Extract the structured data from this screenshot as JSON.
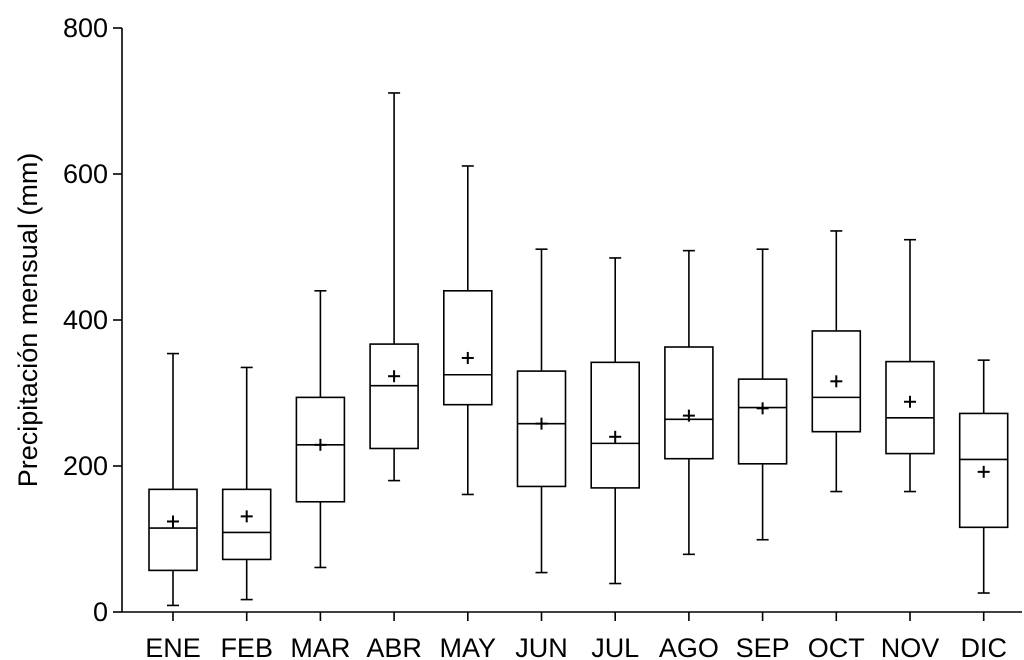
{
  "chart_data": {
    "type": "boxplot",
    "title": "",
    "xlabel": "",
    "ylabel": "Precipitación mensual (mm)",
    "ylim": [
      0,
      800
    ],
    "yticks": [
      0,
      200,
      400,
      600,
      800
    ],
    "grid": false,
    "categories": [
      "ENE",
      "FEB",
      "MAR",
      "ABR",
      "MAY",
      "JUN",
      "JUL",
      "AGO",
      "SEP",
      "OCT",
      "NOV",
      "DIC"
    ],
    "boxes": [
      {
        "min": 9,
        "q1": 57,
        "median": 115,
        "q3": 168,
        "max": 354,
        "mean": 124
      },
      {
        "min": 17,
        "q1": 72,
        "median": 109,
        "q3": 168,
        "max": 335,
        "mean": 131
      },
      {
        "min": 61,
        "q1": 151,
        "median": 229,
        "q3": 294,
        "max": 440,
        "mean": 229
      },
      {
        "min": 180,
        "q1": 224,
        "median": 310,
        "q3": 367,
        "max": 711,
        "mean": 323
      },
      {
        "min": 161,
        "q1": 284,
        "median": 325,
        "q3": 440,
        "max": 611,
        "mean": 348
      },
      {
        "min": 54,
        "q1": 172,
        "median": 258,
        "q3": 330,
        "max": 497,
        "mean": 258
      },
      {
        "min": 39,
        "q1": 170,
        "median": 231,
        "q3": 342,
        "max": 485,
        "mean": 240
      },
      {
        "min": 79,
        "q1": 210,
        "median": 264,
        "q3": 363,
        "max": 495,
        "mean": 269
      },
      {
        "min": 99,
        "q1": 203,
        "median": 280,
        "q3": 319,
        "max": 497,
        "mean": 279
      },
      {
        "min": 165,
        "q1": 247,
        "median": 294,
        "q3": 385,
        "max": 522,
        "mean": 316
      },
      {
        "min": 165,
        "q1": 217,
        "median": 266,
        "q3": 343,
        "max": 510,
        "mean": 288
      },
      {
        "min": 26,
        "q1": 116,
        "median": 209,
        "q3": 272,
        "max": 345,
        "mean": 192
      }
    ]
  }
}
